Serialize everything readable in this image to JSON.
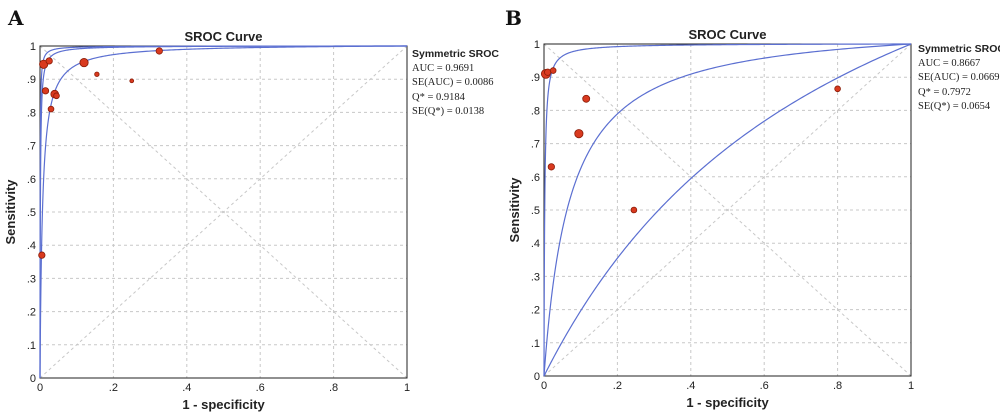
{
  "panels": [
    {
      "letter": "A",
      "stats": {
        "title": "Symmetric SROC",
        "lines": [
          "AUC = 0.9691",
          "SE(AUC) = 0.0086",
          "Q* = 0.9184",
          "SE(Q*) = 0.0138"
        ]
      }
    },
    {
      "letter": "B",
      "stats": {
        "title": "Symmetric SROC",
        "lines": [
          "AUC = 0.8667",
          "SE(AUC) = 0.0669",
          "Q* = 0.7972",
          "SE(Q*) = 0.0654"
        ]
      }
    }
  ],
  "chart_data": [
    {
      "type": "scatter",
      "title": "SROC Curve",
      "xlabel": "1 - specificity",
      "ylabel": "Sensitivity",
      "xlim": [
        0,
        1
      ],
      "ylim": [
        0,
        1
      ],
      "x_ticks": [
        "0",
        ".2",
        ".4",
        ".6",
        ".8",
        "1"
      ],
      "y_ticks": [
        "0",
        ".1",
        ".2",
        ".3",
        ".4",
        ".5",
        ".6",
        ".7",
        ".8",
        ".9",
        "1"
      ],
      "grid": true,
      "curve_color": "#5b6fd1",
      "point_color": "#d93a1f",
      "sroc_lines": [
        {
          "name": "SROC upper",
          "dor": 2400
        },
        {
          "name": "SROC",
          "dor": 1000
        },
        {
          "name": "SROC lower",
          "dor": 150
        }
      ],
      "series": [
        {
          "name": "studies",
          "points": [
            {
              "x": 0.005,
              "y": 0.37,
              "w": 1.0
            },
            {
              "x": 0.01,
              "y": 0.945,
              "w": 1.3
            },
            {
              "x": 0.015,
              "y": 0.865,
              "w": 1.0
            },
            {
              "x": 0.025,
              "y": 0.955,
              "w": 1.0
            },
            {
              "x": 0.03,
              "y": 0.81,
              "w": 0.9
            },
            {
              "x": 0.04,
              "y": 0.855,
              "w": 1.2
            },
            {
              "x": 0.045,
              "y": 0.85,
              "w": 0.9
            },
            {
              "x": 0.12,
              "y": 0.95,
              "w": 1.3
            },
            {
              "x": 0.155,
              "y": 0.915,
              "w": 0.7
            },
            {
              "x": 0.25,
              "y": 0.895,
              "w": 0.6
            },
            {
              "x": 0.325,
              "y": 0.985,
              "w": 1.0
            }
          ]
        }
      ]
    },
    {
      "type": "scatter",
      "title": "SROC Curve",
      "xlabel": "1 - specificity",
      "ylabel": "Sensitivity",
      "xlim": [
        0,
        1
      ],
      "ylim": [
        0,
        1
      ],
      "x_ticks": [
        "0",
        ".2",
        ".4",
        ".6",
        ".8",
        "1"
      ],
      "y_ticks": [
        "0",
        ".1",
        ".2",
        ".3",
        ".4",
        ".5",
        ".6",
        ".7",
        ".8",
        ".9",
        "1"
      ],
      "grid": true,
      "curve_color": "#5b6fd1",
      "point_color": "#d93a1f",
      "sroc_lines": [
        {
          "name": "SROC upper",
          "dor": 500
        },
        {
          "name": "SROC",
          "dor": 15
        },
        {
          "name": "SROC lower",
          "dor": 2.2
        }
      ],
      "series": [
        {
          "name": "studies",
          "points": [
            {
              "x": 0.005,
              "y": 0.91,
              "w": 1.4
            },
            {
              "x": 0.01,
              "y": 0.915,
              "w": 1.0
            },
            {
              "x": 0.02,
              "y": 0.63,
              "w": 1.0
            },
            {
              "x": 0.025,
              "y": 0.92,
              "w": 0.9
            },
            {
              "x": 0.095,
              "y": 0.73,
              "w": 1.3
            },
            {
              "x": 0.115,
              "y": 0.835,
              "w": 1.1
            },
            {
              "x": 0.245,
              "y": 0.5,
              "w": 0.9
            },
            {
              "x": 0.8,
              "y": 0.865,
              "w": 0.9
            }
          ]
        }
      ]
    }
  ]
}
